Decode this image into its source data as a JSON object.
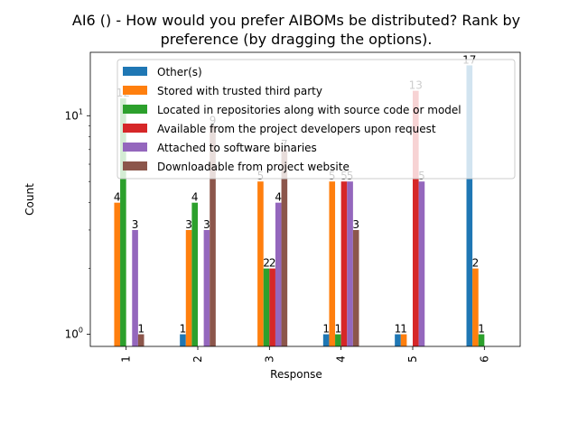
{
  "chart_data": {
    "type": "bar",
    "title_lines": [
      "AI6 () - How would you prefer AIBOMs be distributed? Rank by",
      "preference (by dragging the options)."
    ],
    "xlabel": "Response",
    "ylabel": "Count",
    "yscale": "log",
    "ylim": [
      0.88,
      19.5
    ],
    "y_ticks": [
      {
        "value": 1,
        "base": "10",
        "exp": "0"
      },
      {
        "value": 10,
        "base": "10",
        "exp": "1"
      }
    ],
    "categories": [
      "1",
      "2",
      "3",
      "4",
      "5",
      "6"
    ],
    "series": [
      {
        "name": "Other(s)",
        "color": "#1f77b4",
        "values": [
          null,
          1,
          null,
          1,
          1,
          17
        ]
      },
      {
        "name": "Stored with trusted third party",
        "color": "#ff7f0e",
        "values": [
          4,
          3,
          5,
          5,
          1,
          2
        ]
      },
      {
        "name": "Located in repositories along with source code or model",
        "color": "#2ca02c",
        "values": [
          12,
          4,
          2,
          1,
          null,
          1
        ]
      },
      {
        "name": "Available from the project developers upon request",
        "color": "#d62728",
        "values": [
          null,
          null,
          2,
          5,
          13,
          null
        ]
      },
      {
        "name": "Attached to software binaries",
        "color": "#9467bd",
        "values": [
          3,
          3,
          4,
          5,
          5,
          null
        ]
      },
      {
        "name": "Downloadable from project website",
        "color": "#8c564b",
        "values": [
          1,
          9,
          7,
          3,
          null,
          null
        ]
      }
    ],
    "legend_position": "upper center",
    "grid": false
  }
}
